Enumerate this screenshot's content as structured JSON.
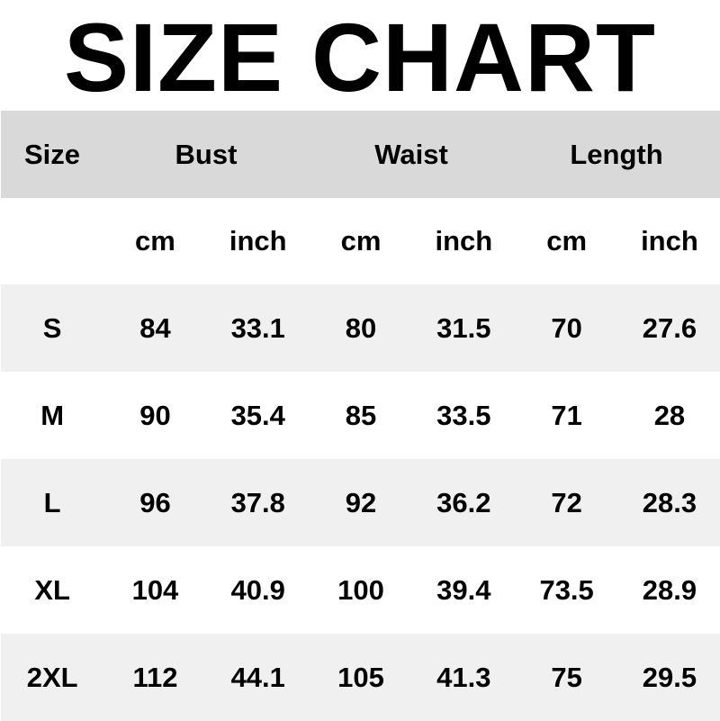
{
  "title": "SIZE CHART",
  "colors": {
    "header_bg": "#d9d9d9",
    "alt_row_bg": "#f0f0f0",
    "row_bg": "#ffffff",
    "text": "#000000"
  },
  "header": {
    "size": "Size",
    "groups": [
      "Bust",
      "Waist",
      "Length"
    ]
  },
  "units": [
    "cm",
    "inch",
    "cm",
    "inch",
    "cm",
    "inch"
  ],
  "rows": [
    {
      "size": "S",
      "values": [
        "84",
        "33.1",
        "80",
        "31.5",
        "70",
        "27.6"
      ]
    },
    {
      "size": "M",
      "values": [
        "90",
        "35.4",
        "85",
        "33.5",
        "71",
        "28"
      ]
    },
    {
      "size": "L",
      "values": [
        "96",
        "37.8",
        "92",
        "36.2",
        "72",
        "28.3"
      ]
    },
    {
      "size": "XL",
      "values": [
        "104",
        "40.9",
        "100",
        "39.4",
        "73.5",
        "28.9"
      ]
    },
    {
      "size": "2XL",
      "values": [
        "112",
        "44.1",
        "105",
        "41.3",
        "75",
        "29.5"
      ]
    }
  ]
}
